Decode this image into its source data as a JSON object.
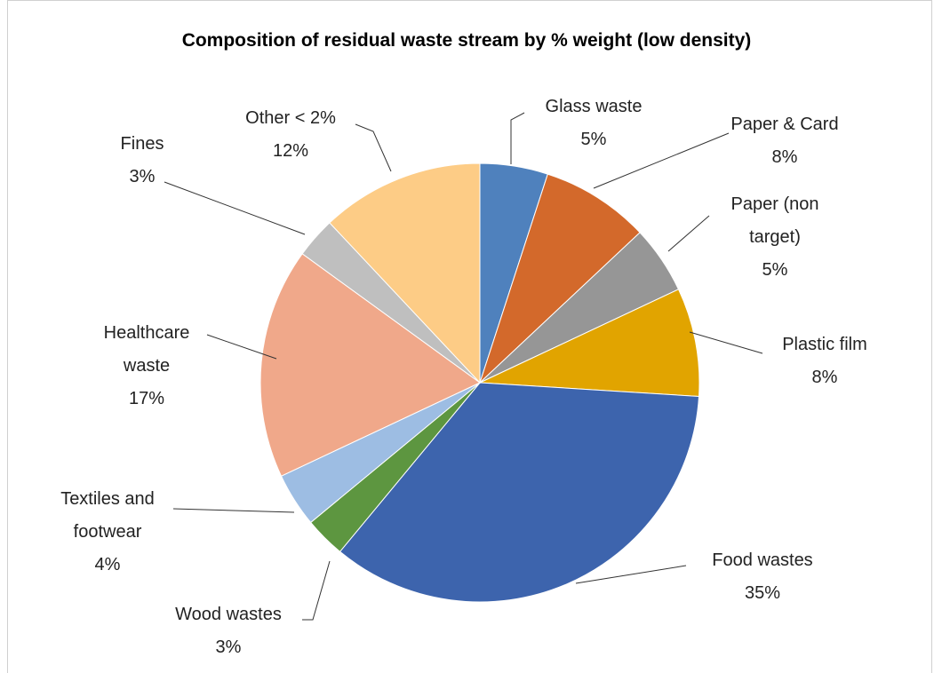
{
  "chart_data": {
    "type": "pie",
    "title": "Composition of residual waste stream by % weight (low density)",
    "categories": [
      "Glass waste",
      "Paper & Card",
      "Paper (non target)",
      "Plastic film",
      "Food wastes",
      "Wood wastes",
      "Textiles and footwear",
      "Healthcare waste",
      "Fines",
      "Other < 2%"
    ],
    "values": [
      5,
      8,
      5,
      8,
      35,
      3,
      4,
      17,
      3,
      12
    ],
    "value_labels": [
      "5%",
      "8%",
      "5%",
      "8%",
      "35%",
      "3%",
      "4%",
      "17%",
      "3%",
      "12%"
    ],
    "colors": [
      "#4f81bd",
      "#d3692b",
      "#969696",
      "#e1a400",
      "#3d64ad",
      "#5d9640",
      "#9dbde3",
      "#f0a88a",
      "#bfbfbf",
      "#fdcc86"
    ]
  }
}
